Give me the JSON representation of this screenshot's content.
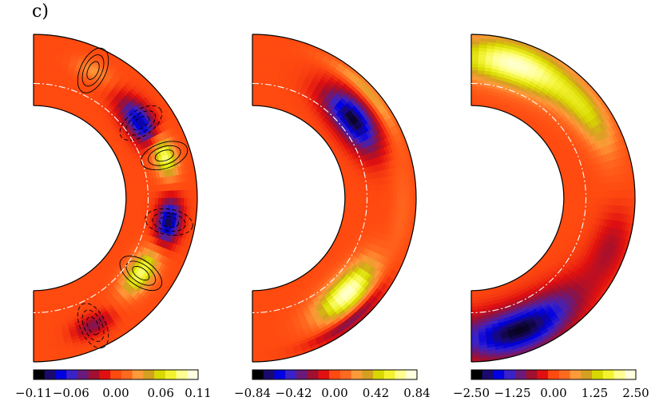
{
  "panel_label": "c)",
  "chart_data": [
    {
      "type": "heatmap",
      "projection": "meridional-half-annulus",
      "title": "",
      "colormap": [
        "#000000",
        "#1a0a6e",
        "#0000e0",
        "#3a22c8",
        "#6a1a7a",
        "#a01030",
        "#e01010",
        "#ff4a10",
        "#ff6a20",
        "#ff9a3a",
        "#d4a020",
        "#d8d800",
        "#f2f230",
        "#ffff90",
        "#ffffe0"
      ],
      "colorbar": {
        "min": -0.11,
        "max": 0.11,
        "ticks": [
          -0.11,
          -0.06,
          0.0,
          0.06,
          0.11
        ],
        "tick_labels": [
          "−0.11",
          "−0.06",
          "0.00",
          "0.06",
          "0.11"
        ]
      },
      "background_value": 0.0,
      "features": [
        {
          "kind": "blob",
          "r": 0.8,
          "theta_deg": 55,
          "value": -0.09,
          "dr": 0.08,
          "dtheta": 12
        },
        {
          "kind": "blob",
          "r": 0.84,
          "theta_deg": 72,
          "value": 0.1,
          "dr": 0.07,
          "dtheta": 9
        },
        {
          "kind": "blob",
          "r": 0.84,
          "theta_deg": 100,
          "value": -0.1,
          "dr": 0.07,
          "dtheta": 9
        },
        {
          "kind": "blob",
          "r": 0.8,
          "theta_deg": 125,
          "value": 0.09,
          "dr": 0.08,
          "dtheta": 11
        },
        {
          "kind": "blob",
          "r": 0.86,
          "theta_deg": 25,
          "value": 0.03,
          "dr": 0.06,
          "dtheta": 8
        },
        {
          "kind": "blob",
          "r": 0.86,
          "theta_deg": 155,
          "value": -0.04,
          "dr": 0.06,
          "dtheta": 8
        }
      ],
      "contours": true
    },
    {
      "type": "heatmap",
      "projection": "meridional-half-annulus",
      "title": "",
      "colormap": [
        "#000000",
        "#1a0a6e",
        "#0000e0",
        "#3a22c8",
        "#6a1a7a",
        "#a01030",
        "#e01010",
        "#ff4a10",
        "#ff6a20",
        "#ff9a3a",
        "#d4a020",
        "#d8d800",
        "#f2f230",
        "#ffff90",
        "#ffffe0"
      ],
      "colorbar": {
        "min": -0.84,
        "max": 0.84,
        "ticks": [
          -0.84,
          -0.42,
          0.0,
          0.42,
          0.84
        ],
        "tick_labels": [
          "−0.84",
          "−0.42",
          "0.00",
          "0.42",
          "0.84"
        ]
      },
      "background_value": 0.0,
      "features": [
        {
          "kind": "blob",
          "r": 0.78,
          "theta_deg": 52,
          "value": -0.8,
          "dr": 0.1,
          "dtheta": 16
        },
        {
          "kind": "blob",
          "r": 0.96,
          "theta_deg": 48,
          "value": 0.35,
          "dr": 0.04,
          "dtheta": 18
        },
        {
          "kind": "blob",
          "r": 0.82,
          "theta_deg": 135,
          "value": 0.82,
          "dr": 0.1,
          "dtheta": 16
        },
        {
          "kind": "blob",
          "r": 0.96,
          "theta_deg": 140,
          "value": -0.4,
          "dr": 0.04,
          "dtheta": 16
        },
        {
          "kind": "blob",
          "r": 0.92,
          "theta_deg": 95,
          "value": 0.1,
          "dr": 0.06,
          "dtheta": 20
        }
      ],
      "contours": false
    },
    {
      "type": "heatmap",
      "projection": "meridional-half-annulus",
      "title": "",
      "colormap": [
        "#000000",
        "#1a0a6e",
        "#0000e0",
        "#3a22c8",
        "#6a1a7a",
        "#a01030",
        "#e01010",
        "#ff4a10",
        "#ff6a20",
        "#ff9a3a",
        "#d4a020",
        "#d8d800",
        "#f2f230",
        "#ffff90",
        "#ffffe0"
      ],
      "colorbar": {
        "min": -2.5,
        "max": 2.5,
        "ticks": [
          -2.5,
          -1.25,
          0.0,
          1.25,
          2.5
        ],
        "tick_labels": [
          "−2.50",
          "−1.25",
          "0.00",
          "1.25",
          "2.50"
        ]
      },
      "background_value": 0.0,
      "features": [
        {
          "kind": "blob",
          "r": 0.86,
          "theta_deg": 18,
          "value": 2.4,
          "dr": 0.14,
          "dtheta": 26
        },
        {
          "kind": "blob",
          "r": 0.88,
          "theta_deg": 55,
          "value": 1.2,
          "dr": 0.1,
          "dtheta": 18
        },
        {
          "kind": "blob",
          "r": 0.9,
          "theta_deg": 110,
          "value": -0.6,
          "dr": 0.1,
          "dtheta": 14
        },
        {
          "kind": "blob",
          "r": 0.86,
          "theta_deg": 160,
          "value": -2.4,
          "dr": 0.14,
          "dtheta": 26
        }
      ],
      "contours": false
    }
  ]
}
